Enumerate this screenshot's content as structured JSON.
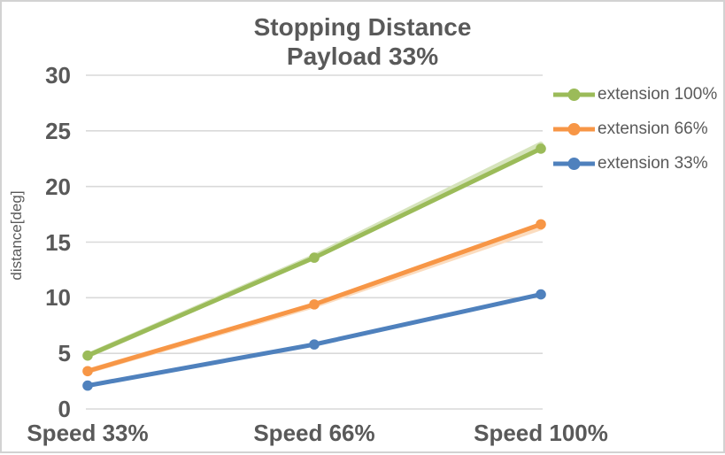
{
  "title": {
    "line1": "Stopping Distance",
    "line2": "Payload 33%"
  },
  "y_axis": {
    "title": "distance[deg]",
    "ticks": [
      30,
      25,
      20,
      15,
      10,
      5,
      0
    ]
  },
  "x_axis": {
    "categories": [
      "Speed 33%",
      "Speed 66%",
      "Speed 100%"
    ]
  },
  "legend": {
    "position": "right",
    "labels": [
      "extension 100%",
      "extension 66%",
      "extension 33%"
    ]
  },
  "colors": {
    "text": "#595959",
    "gridline": "#D9D9D9",
    "green": "#9BBB59",
    "orange": "#F79646",
    "blue": "#4F81BD",
    "green_light": "#D6E4BC",
    "orange_light": "#FBDCBF"
  },
  "chart_data": {
    "type": "line",
    "title": "Stopping Distance",
    "subtitle": "Payload 33%",
    "xlabel": "",
    "ylabel": "distance[deg]",
    "ylim": [
      0,
      30
    ],
    "ytick_step": 5,
    "grid": true,
    "legend_position": "right",
    "categories": [
      "Speed 33%",
      "Speed 66%",
      "Speed 100%"
    ],
    "series": [
      {
        "name": "extension 100%",
        "color": "#9BBB59",
        "marker": "circle",
        "values": [
          4.8,
          13.6,
          23.4
        ]
      },
      {
        "name": "extension 66%",
        "color": "#F79646",
        "marker": "circle",
        "values": [
          3.4,
          9.4,
          16.6
        ]
      },
      {
        "name": "extension 33%",
        "color": "#4F81BD",
        "marker": "circle",
        "values": [
          2.1,
          5.8,
          10.3
        ]
      }
    ],
    "shadow_series": [
      {
        "name": "extension 100% ghost",
        "color": "#D6E4BC",
        "values": [
          4.8,
          13.7,
          23.8
        ]
      },
      {
        "name": "extension 66% ghost",
        "color": "#FBDCBF",
        "values": [
          3.4,
          9.3,
          16.3
        ]
      }
    ]
  }
}
